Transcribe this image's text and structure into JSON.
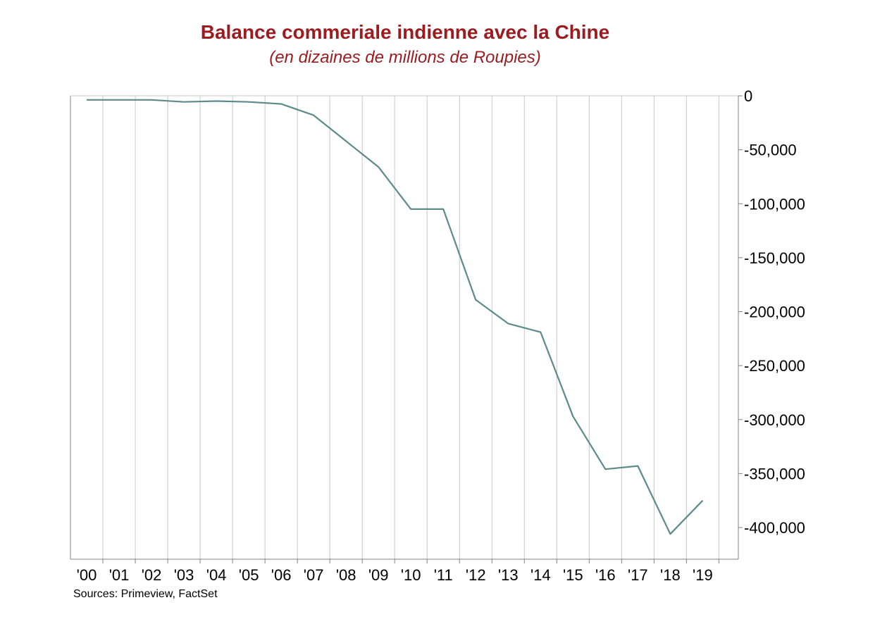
{
  "chart_data": {
    "type": "line",
    "title": "Balance commeriale indienne avec la Chine",
    "subtitle": "(en dizaines de millions de Roupies)",
    "source": "Sources: Primeview, FactSet",
    "categories": [
      "'00",
      "'01",
      "'02",
      "'03",
      "'04",
      "'05",
      "'06",
      "'07",
      "'08",
      "'09",
      "'10",
      "'11",
      "'12",
      "'13",
      "'14",
      "'15",
      "'16",
      "'17",
      "'18",
      "'19"
    ],
    "series": [
      {
        "values": [
          -3800,
          -3800,
          -3800,
          -5700,
          -4900,
          -5700,
          -7600,
          -18000,
          -42000,
          -66000,
          -105000,
          -105000,
          -189000,
          -211000,
          -219000,
          -297000,
          -346000,
          -343000,
          -406000,
          -375000
        ],
        "color": "#5E8A8C"
      }
    ],
    "y_ticks": [
      0,
      -50000,
      -100000,
      -150000,
      -200000,
      -250000,
      -300000,
      -350000,
      -400000
    ],
    "y_tick_labels": [
      "0",
      "-50,000",
      "-100,000",
      "-150,000",
      "-200,000",
      "-250,000",
      "-300,000",
      "-350,000",
      "-400,000"
    ],
    "ylim": [
      -430000,
      0
    ],
    "y_axis_position": "right",
    "grid": "vertical",
    "legend": "none"
  },
  "colors": {
    "title": "#9B1B1F",
    "line": "#5E8A8C",
    "grid": "#C8C8C8",
    "axis": "#808080"
  }
}
